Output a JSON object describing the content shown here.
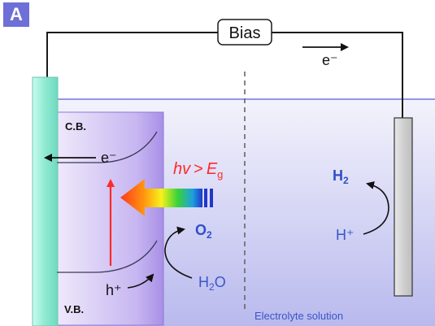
{
  "panel_label": "A",
  "bias_label": "Bias",
  "electron_label": "e⁻",
  "cb_label": "C.B.",
  "vb_label": "V.B.",
  "band_electron_label": "e⁻",
  "hole_label": "h⁺",
  "photon_label_hv": "hv",
  "photon_label_gt": ">",
  "photon_label_e": "E",
  "photon_label_sub": "g",
  "o2_main": "O",
  "o2_sub": "2",
  "h2o_h": "H",
  "h2o_sub": "2",
  "h2o_o": "O",
  "h2_main": "H",
  "h2_sub": "2",
  "hplus_label": "H⁺",
  "electrolyte_label": "Electrolyte solution",
  "colors": {
    "electrode": "#9ff2dc",
    "semiconductor": "#b7a4ec",
    "electrolyte": "#dcdcf7",
    "bands": "#3a3a5a",
    "excitation_arrow": "#ff2a2a",
    "photon_label": "#ff2a2a",
    "product_labels": "#2f4fc8",
    "reactant_labels": "#3a57c8",
    "electrolyte_label": "#3a57c8",
    "panel_badge": "#6f6fd8"
  }
}
